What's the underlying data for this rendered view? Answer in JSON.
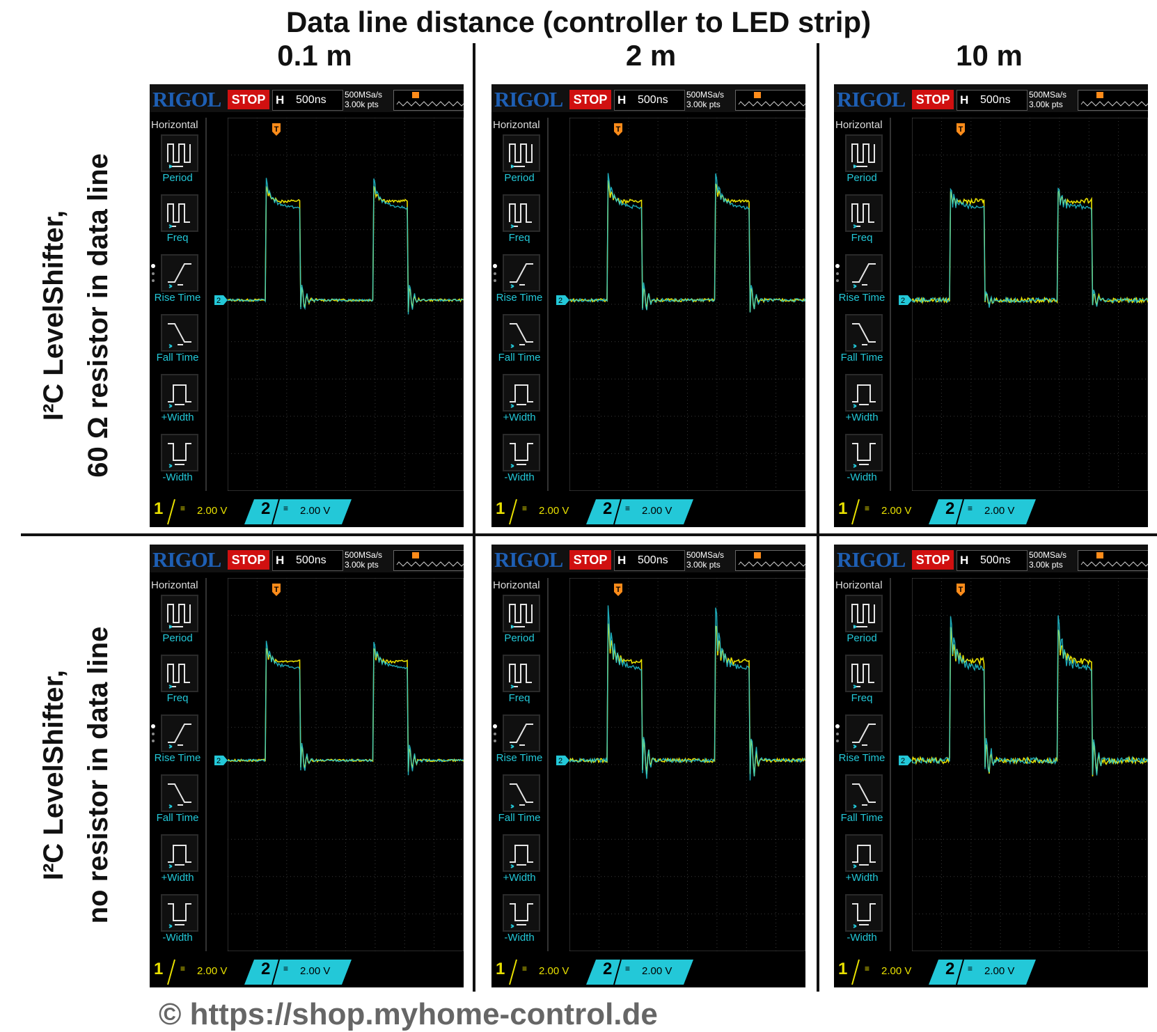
{
  "title": "Data line distance (controller to LED strip)",
  "columns": [
    "0.1 m",
    "2 m",
    "10 m"
  ],
  "rows": [
    {
      "line1": "I²C LevelShifter,",
      "line2": "60 Ω resistor in data line"
    },
    {
      "line1": "I²C LevelShifter,",
      "line2": "no resistor in data line"
    }
  ],
  "copyright": "© https://shop.myhome-control.de",
  "scope": {
    "brand": "RIGOL",
    "run_state": "STOP",
    "h_label": "H",
    "timebase": "500ns",
    "sample_rate": "500MSa/s",
    "memory": "3.00k pts",
    "menu_title": "Horizontal",
    "menu_items": [
      "Period",
      "Freq",
      "Rise Time",
      "Fall Time",
      "+Width",
      "-Width"
    ],
    "ch1_label": "1",
    "ch1_scale": "2.00 V",
    "ch2_label": "2",
    "ch2_scale": "2.00 V",
    "trigger_marker": "T",
    "ch2_marker": "2"
  },
  "colors": {
    "ch1": "#e8e000",
    "ch2": "#23c8d8",
    "stop": "#d01010",
    "brand": "#1e5fb4",
    "trigger": "#ff8c1a"
  },
  "chart_data": {
    "type": "line",
    "note_units": "x in divisions (500ns/div), y in divisions (2.00 V/div) relative to ground",
    "panels": [
      {
        "row": 0,
        "col": 0,
        "overshoot_div": 0.6,
        "ringing": 0.15,
        "undershoot_div": 0.9,
        "noise": 0.03
      },
      {
        "row": 0,
        "col": 1,
        "overshoot_div": 0.7,
        "ringing": 0.25,
        "undershoot_div": 1.0,
        "noise": 0.04
      },
      {
        "row": 0,
        "col": 2,
        "overshoot_div": 0.25,
        "ringing": 0.3,
        "undershoot_div": 0.6,
        "noise": 0.06
      },
      {
        "row": 1,
        "col": 0,
        "overshoot_div": 0.5,
        "ringing": 0.2,
        "undershoot_div": 1.0,
        "noise": 0.03
      },
      {
        "row": 1,
        "col": 1,
        "overshoot_div": 1.3,
        "ringing": 0.6,
        "undershoot_div": 1.6,
        "noise": 0.05
      },
      {
        "row": 1,
        "col": 2,
        "overshoot_div": 1.1,
        "ringing": 0.5,
        "undershoot_div": 1.4,
        "noise": 0.08
      }
    ],
    "pulses": [
      {
        "rise_div": 1.3,
        "fall_div": 2.45
      },
      {
        "rise_div": 4.95,
        "fall_div": 6.1
      }
    ],
    "high_level_div": 2.6,
    "ground_level_div": 0
  }
}
